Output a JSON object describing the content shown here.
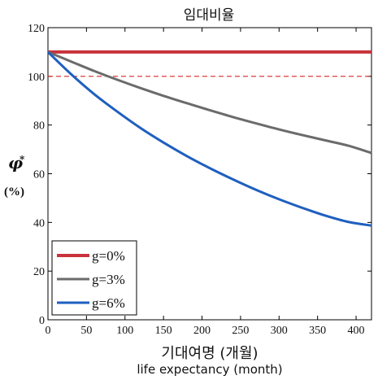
{
  "chart_data": {
    "type": "line",
    "title": "임대비율",
    "xlabel_ko": "기대여명 (개월)",
    "xlabel_en": "life expectancy (month)",
    "ylabel_symbol": "φ",
    "ylabel_superscript": "*",
    "ylabel_unit": "(%)",
    "xlim": [
      0,
      420
    ],
    "ylim": [
      0,
      120
    ],
    "x_ticks": [
      0,
      50,
      100,
      150,
      200,
      250,
      300,
      350,
      400
    ],
    "y_ticks": [
      0,
      20,
      40,
      60,
      80,
      100,
      120
    ],
    "x_tick_labels": [
      "0",
      "50",
      "100",
      "150",
      "200",
      "250",
      "300",
      "350",
      "400"
    ],
    "y_tick_labels": [
      "0",
      "20",
      "40",
      "60",
      "80",
      "100",
      "120"
    ],
    "reference_line": {
      "y": 100,
      "style": "dashed",
      "color": "#d62728"
    },
    "legend_position": "bottom-left",
    "x": [
      0,
      30,
      60,
      90,
      120,
      150,
      180,
      210,
      240,
      270,
      300,
      330,
      360,
      390,
      420
    ],
    "series": [
      {
        "name": "g=0%",
        "color": "#c8323c",
        "values": [
          110,
          110,
          110,
          110,
          110,
          110,
          110,
          110,
          110,
          110,
          110,
          110,
          110,
          110,
          110
        ]
      },
      {
        "name": "g=3%",
        "color": "#6b6b6b",
        "values": [
          110,
          106.1,
          102.2,
          98.6,
          95.2,
          92.0,
          89.0,
          86.1,
          83.3,
          80.7,
          78.2,
          75.9,
          73.7,
          71.5,
          68.5
        ]
      },
      {
        "name": "g=6%",
        "color": "#1f5fbf",
        "values": [
          110,
          100.9,
          92.7,
          85.5,
          78.8,
          72.8,
          67.3,
          62.3,
          57.7,
          53.4,
          49.5,
          46.0,
          42.8,
          40.2,
          38.7
        ]
      }
    ]
  }
}
